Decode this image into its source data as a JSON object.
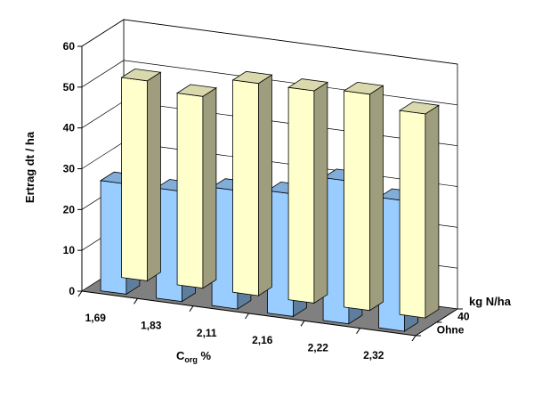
{
  "chart_data": {
    "type": "bar",
    "variant": "3d-grouped-depth",
    "categories": [
      "1,69",
      "1,83",
      "2,11",
      "2,16",
      "2,22",
      "2,32"
    ],
    "series": [
      {
        "name": "40",
        "values": [
          49,
          47,
          52,
          52,
          53,
          50
        ],
        "color": "#FFFFCC"
      },
      {
        "name": "Ohne",
        "values": [
          27,
          27,
          29,
          30,
          35,
          32
        ],
        "color": "#99CCFF"
      }
    ],
    "ylabel": "Ertrag  dt / ha",
    "xlabel_main": "C",
    "xlabel_sub": "org",
    "xlabel_suffix": " %",
    "zlabel": "kg N/ha",
    "ylim": [
      0,
      60
    ],
    "yticks": [
      0,
      10,
      20,
      30,
      40,
      50,
      60
    ],
    "grid": true,
    "colors": {
      "floor": "#808080",
      "bar_stroke": "#000000",
      "grid": "#000000"
    }
  }
}
